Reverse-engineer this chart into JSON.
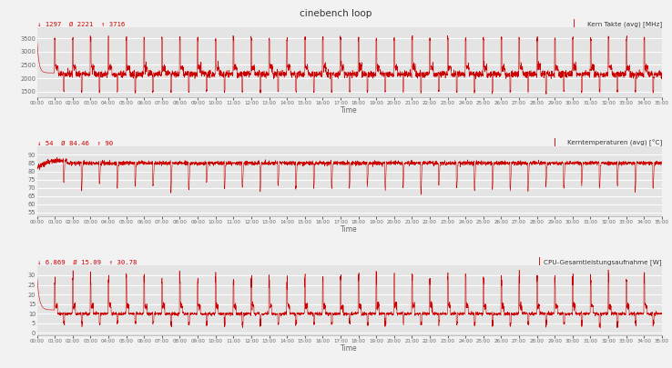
{
  "title": "cinebench loop",
  "background_color": "#f2f2f2",
  "plot_bg_color": "#e4e4e4",
  "chart1": {
    "legend": "Kern Takte (avg) [MHz]",
    "stats_min": "1297",
    "stats_avg": "2221",
    "stats_max": "3716",
    "ylim": [
      1300,
      3900
    ],
    "yticks": [
      1500,
      2000,
      2500,
      3000,
      3500
    ]
  },
  "chart2": {
    "legend": "Kerntemperaturen (avg) [°C]",
    "stats_min": "54",
    "stats_avg": "84.46",
    "stats_max": "90",
    "ylim": [
      53,
      95
    ],
    "yticks": [
      55,
      60,
      65,
      70,
      75,
      80,
      85,
      90
    ]
  },
  "chart3": {
    "legend": "CPU-Gesamtleistungsaufnahme [W]",
    "stats_min": "6.869",
    "stats_avg": "15.09",
    "stats_max": "30.78",
    "ylim": [
      -1,
      35
    ],
    "yticks": [
      0,
      5,
      10,
      15,
      20,
      25,
      30
    ]
  },
  "time_total_seconds": 2100,
  "xtick_interval_seconds": 60,
  "line_color": "#cc0000",
  "grid_color": "#ffffff",
  "tick_label_color": "#666666",
  "stats_min_color": "#cc0000",
  "stats_avg_color": "#cc0000",
  "stats_max_color": "#cc0000",
  "title_color": "#333333",
  "legend_color": "#333333",
  "legend_bar_color": "#cc0000"
}
